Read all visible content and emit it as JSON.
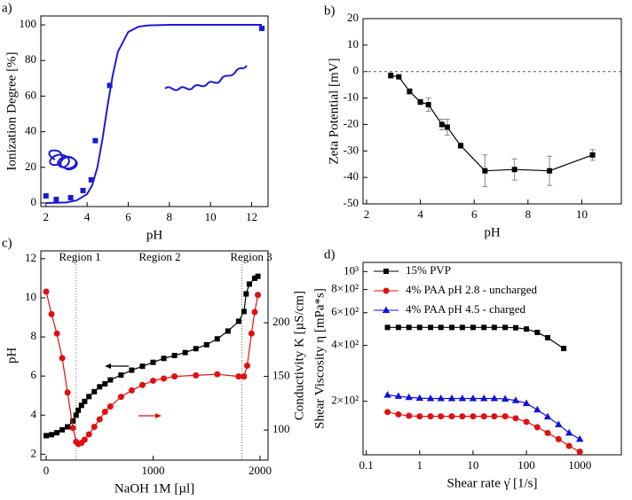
{
  "chart_data": [
    {
      "type": "scatter",
      "panel_label": "a)",
      "xlabel": "pH",
      "ylabel": "Ionization Degree [%]",
      "xlim": [
        1.75,
        12.8
      ],
      "ylim": [
        -2,
        105
      ],
      "xticks": [
        2,
        4,
        6,
        8,
        10,
        12
      ],
      "yticks": [
        0,
        20,
        40,
        60,
        80,
        100
      ],
      "series": [
        {
          "color": "#1a1ad6",
          "marker": "square",
          "x": [
            2,
            2.5,
            3.2,
            3.8,
            4.2,
            4.4,
            5.1,
            12.5
          ],
          "values": [
            4,
            2,
            3,
            7,
            13,
            35,
            66,
            98
          ]
        },
        {
          "color": "#1a1ad6",
          "line": true,
          "x": [
            2,
            3,
            3.5,
            4,
            4.25,
            4.5,
            4.75,
            5,
            5.25,
            5.5,
            6,
            6.5,
            7,
            8,
            10,
            12.5
          ],
          "values": [
            0,
            0.3,
            1.5,
            5,
            10,
            20,
            36,
            55,
            72,
            85,
            96,
            99,
            99.7,
            100,
            100,
            100
          ]
        }
      ]
    },
    {
      "type": "scatter",
      "panel_label": "b)",
      "xlabel": "pH",
      "ylabel": "Zeta Potential [mV]",
      "xlim": [
        1.87,
        11.47
      ],
      "ylim": [
        -50,
        20
      ],
      "xticks": [
        2,
        4,
        6,
        8,
        10
      ],
      "yticks": [
        -50,
        -40,
        -30,
        -20,
        -10,
        0,
        10,
        20
      ],
      "hline": 0,
      "series": [
        {
          "color": "#000000",
          "marker": "square",
          "line": true,
          "x": [
            2.9,
            3.2,
            3.6,
            4.0,
            4.3,
            4.8,
            5.0,
            5.5,
            6.4,
            7.5,
            8.8,
            10.4
          ],
          "values": [
            -1.5,
            -2,
            -7.5,
            -11.5,
            -12.5,
            -20,
            -21,
            -28,
            -37.5,
            -37,
            -37.5,
            -31.5
          ],
          "errors": [
            1,
            0.5,
            1,
            1,
            2.5,
            2,
            3,
            1,
            6,
            4,
            5.5,
            2
          ]
        }
      ]
    },
    {
      "type": "line",
      "panel_label": "c)",
      "xlabel": "NaOH 1M [µl]",
      "ylabel": "pH",
      "y2label": "Conductivity K [µS/cm]",
      "xlim": [
        -50,
        2075
      ],
      "ylim": [
        1.7,
        12.4
      ],
      "y2lim": [
        72,
        267
      ],
      "xticks": [
        0,
        1000,
        2000
      ],
      "yticks": [
        2,
        4,
        6,
        8,
        10,
        12
      ],
      "y2ticks": [
        100,
        150,
        200
      ],
      "vlines": [
        280,
        1830
      ],
      "annotations": [
        "Region 1",
        "Region 2",
        "Region 3"
      ],
      "series": [
        {
          "color": "#000000",
          "marker": "square",
          "x": [
            0,
            50,
            100,
            150,
            200,
            250,
            280,
            300,
            330,
            360,
            400,
            450,
            500,
            550,
            600,
            700,
            800,
            900,
            1000,
            1100,
            1200,
            1300,
            1400,
            1500,
            1600,
            1700,
            1800,
            1850,
            1870,
            1900,
            1950,
            1980
          ],
          "values": [
            2.95,
            3.0,
            3.1,
            3.25,
            3.4,
            3.7,
            4.0,
            4.25,
            4.5,
            4.7,
            4.95,
            5.2,
            5.45,
            5.6,
            5.8,
            6.05,
            6.3,
            6.5,
            6.7,
            6.9,
            7.05,
            7.2,
            7.4,
            7.6,
            7.9,
            8.3,
            8.8,
            9.3,
            10.2,
            10.7,
            11.0,
            11.1
          ]
        },
        {
          "color": "#e01010",
          "marker": "circle",
          "axis": "y2",
          "x": [
            0,
            50,
            100,
            150,
            200,
            250,
            280,
            300,
            330,
            360,
            400,
            450,
            500,
            550,
            600,
            700,
            800,
            900,
            1000,
            1100,
            1200,
            1400,
            1600,
            1800,
            1850,
            1880,
            1920,
            1950,
            1980
          ],
          "values": [
            229,
            208,
            190,
            167,
            135,
            102,
            89,
            87,
            88,
            91,
            96,
            103,
            110,
            117,
            122,
            131,
            137,
            142,
            146,
            148,
            150,
            151,
            152,
            150,
            150,
            160,
            190,
            210,
            226
          ]
        }
      ]
    },
    {
      "type": "line",
      "panel_label": "d)",
      "xlabel": "Shear rate γ̇ [1/s]",
      "ylabel": "Shear Viscosity η [mPa*s]",
      "xlog": true,
      "ylog": true,
      "legend": "top-left",
      "xlim": [
        0.087,
        6000
      ],
      "ylim": [
        103,
        1120
      ],
      "xticks": [
        0.1,
        1,
        10,
        100,
        1000
      ],
      "yticks": [
        {
          "value": 1000,
          "label": "10³"
        },
        {
          "value": 800,
          "label": "8×10²"
        },
        {
          "value": 600,
          "label": "6×10²"
        },
        {
          "value": 400,
          "label": "4×10²"
        },
        {
          "value": 200,
          "label": "2×10²"
        }
      ],
      "series": [
        {
          "name": "15% PVP",
          "color": "#000000",
          "marker": "square",
          "x": [
            0.25,
            0.4,
            0.63,
            1,
            1.6,
            2.5,
            4,
            6.3,
            10,
            16,
            25,
            40,
            63,
            100,
            160,
            250,
            500
          ],
          "values": [
            500,
            500,
            500,
            500,
            500,
            500,
            500,
            500,
            500,
            500,
            500,
            500,
            498,
            490,
            470,
            440,
            385
          ]
        },
        {
          "name": "4% PAA pH 2.8 - uncharged",
          "color": "#e01010",
          "marker": "circle",
          "x": [
            0.25,
            0.4,
            0.63,
            1,
            1.6,
            2.5,
            4,
            6.3,
            10,
            16,
            25,
            40,
            63,
            100,
            160,
            250,
            400,
            630,
            1000
          ],
          "values": [
            175,
            170,
            167,
            166,
            166,
            166,
            166,
            166,
            166,
            166,
            166,
            166,
            162,
            155,
            145,
            135,
            125,
            115,
            107
          ]
        },
        {
          "name": "4% PAA pH 4.5 - charged",
          "color": "#1010e0",
          "marker": "triangle",
          "x": [
            0.25,
            0.4,
            0.63,
            1,
            1.6,
            2.5,
            4,
            6.3,
            10,
            16,
            25,
            40,
            63,
            100,
            160,
            250,
            400,
            630,
            1000
          ],
          "values": [
            216,
            213,
            210,
            208,
            207,
            207,
            207,
            207,
            207,
            207,
            207,
            206,
            202,
            195,
            180,
            165,
            150,
            135,
            125
          ]
        }
      ]
    }
  ]
}
